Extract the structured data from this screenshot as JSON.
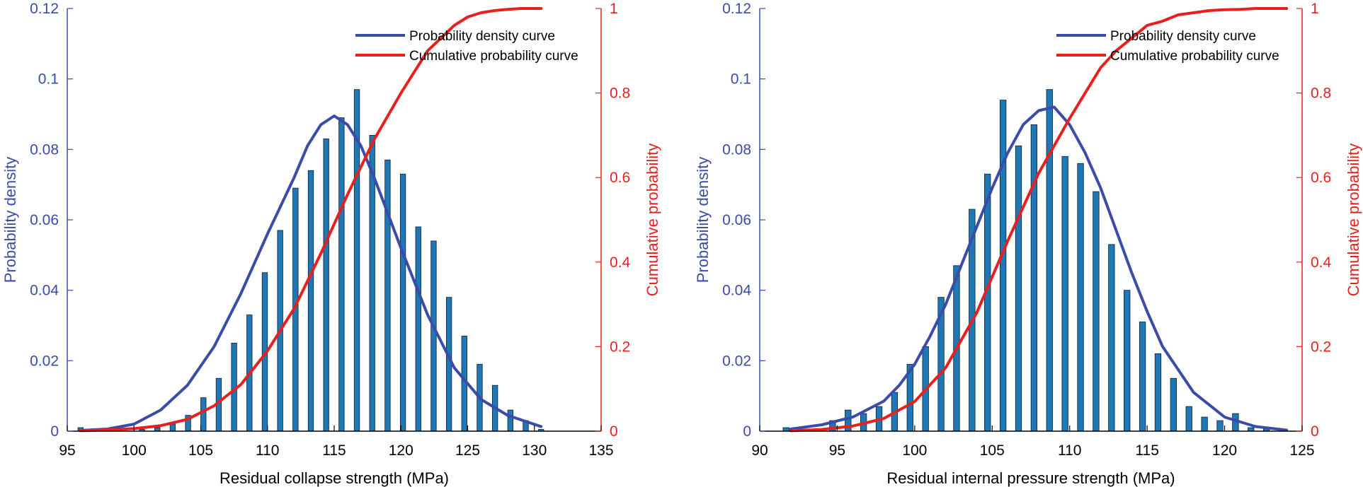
{
  "colors": {
    "left_axis": "#3b4ba8",
    "right_axis": "#e8201d",
    "bar_fill": "#1f77b4",
    "bar_edge": "#0a1f3a",
    "density_line": "#3b4ba8",
    "cumulative_line": "#e8201d",
    "bottom_axis": "#000000"
  },
  "chart_data": [
    {
      "type": "bar",
      "title": "",
      "xlabel": "Residual collapse strength (MPa)",
      "ylabel": "Probability density",
      "y2label": "Cumulative probability",
      "xlim": [
        95,
        135
      ],
      "ylim": [
        0,
        0.12
      ],
      "y2lim": [
        0,
        1
      ],
      "xticks": [
        "95",
        "100",
        "105",
        "110",
        "115",
        "120",
        "125",
        "130",
        "135"
      ],
      "yticks": [
        "0",
        "0.02",
        "0.04",
        "0.06",
        "0.08",
        "0.1",
        "0.12"
      ],
      "y2ticks": [
        "0",
        "0.2",
        "0.4",
        "0.6",
        "0.8",
        "1"
      ],
      "legend_position": "top-right",
      "bars": {
        "x": [
          96,
          97.15,
          98.3,
          99.45,
          100.6,
          101.75,
          102.9,
          104.05,
          105.2,
          106.35,
          107.5,
          108.65,
          109.8,
          110.95,
          112.1,
          113.25,
          114.4,
          115.55,
          116.7,
          117.85,
          119,
          120.15,
          121.3,
          122.45,
          123.6,
          124.75,
          125.9,
          127.05,
          128.2,
          129.35,
          130.5
        ],
        "values": [
          0.001,
          0,
          0,
          0,
          0.0005,
          0.001,
          0.002,
          0.0045,
          0.0095,
          0.015,
          0.025,
          0.033,
          0.045,
          0.057,
          0.069,
          0.074,
          0.083,
          0.089,
          0.097,
          0.084,
          0.077,
          0.073,
          0.058,
          0.054,
          0.038,
          0.027,
          0.019,
          0.013,
          0.006,
          0.003,
          0.0005
        ]
      },
      "series": [
        {
          "name": "Probability density curve",
          "x": [
            96,
            98,
            100,
            102,
            104,
            106,
            108,
            110,
            111,
            112,
            113,
            114,
            115,
            116,
            117,
            118,
            120,
            122,
            124,
            126,
            128,
            130.5
          ],
          "values": [
            0.0002,
            0.0006,
            0.002,
            0.006,
            0.013,
            0.024,
            0.039,
            0.056,
            0.064,
            0.072,
            0.081,
            0.087,
            0.0895,
            0.087,
            0.081,
            0.072,
            0.052,
            0.033,
            0.018,
            0.009,
            0.0045,
            0.0013
          ]
        },
        {
          "name": "Cumulative probability curve",
          "x": [
            96,
            98,
            100,
            102,
            104,
            106,
            108,
            110,
            112,
            114,
            116,
            118,
            120,
            122,
            124,
            125,
            126,
            127,
            128,
            129,
            130.5
          ],
          "values": [
            0.001,
            0.003,
            0.006,
            0.013,
            0.028,
            0.06,
            0.11,
            0.19,
            0.29,
            0.42,
            0.56,
            0.69,
            0.8,
            0.9,
            0.96,
            0.98,
            0.99,
            0.995,
            0.998,
            1,
            1
          ]
        }
      ]
    },
    {
      "type": "bar",
      "title": "",
      "xlabel": "Residual internal pressure strength (MPa)",
      "ylabel": "Probability density",
      "y2label": "Cumulative probability",
      "xlim": [
        90,
        125
      ],
      "ylim": [
        0,
        0.12
      ],
      "y2lim": [
        0,
        1
      ],
      "xticks": [
        "90",
        "95",
        "100",
        "105",
        "110",
        "115",
        "120",
        "125"
      ],
      "yticks": [
        "0",
        "0.02",
        "0.04",
        "0.06",
        "0.08",
        "0.1",
        "0.12"
      ],
      "y2ticks": [
        "0",
        "0.2",
        "0.4",
        "0.6",
        "0.8",
        "1"
      ],
      "legend_position": "top-right",
      "bars": {
        "x": [
          91.7,
          92.7,
          93.7,
          94.7,
          95.7,
          96.7,
          97.7,
          98.7,
          99.7,
          100.7,
          101.7,
          102.7,
          103.7,
          104.7,
          105.7,
          106.7,
          107.7,
          108.7,
          109.7,
          110.7,
          111.7,
          112.7,
          113.7,
          114.7,
          115.7,
          116.7,
          117.7,
          118.7,
          119.7,
          120.7,
          121.7,
          122.7
        ],
        "values": [
          0.001,
          0,
          0,
          0.003,
          0.006,
          0.005,
          0.007,
          0.011,
          0.019,
          0.024,
          0.038,
          0.047,
          0.063,
          0.073,
          0.094,
          0.081,
          0.087,
          0.097,
          0.078,
          0.076,
          0.068,
          0.053,
          0.04,
          0.031,
          0.022,
          0.015,
          0.007,
          0.004,
          0.003,
          0.005,
          0.001,
          0.001
        ]
      },
      "series": [
        {
          "name": "Probability density curve",
          "x": [
            92,
            94,
            96,
            98,
            99,
            100,
            101,
            102,
            103,
            104,
            105,
            106,
            107,
            108,
            109,
            110,
            111,
            112,
            113,
            114,
            115,
            116,
            118,
            120,
            122,
            124
          ],
          "values": [
            0.0006,
            0.0018,
            0.004,
            0.0085,
            0.013,
            0.019,
            0.027,
            0.036,
            0.047,
            0.058,
            0.069,
            0.079,
            0.087,
            0.091,
            0.092,
            0.087,
            0.079,
            0.069,
            0.057,
            0.045,
            0.034,
            0.024,
            0.011,
            0.004,
            0.0013,
            0.0003
          ]
        },
        {
          "name": "Cumulative probability curve",
          "x": [
            92,
            94,
            96,
            98,
            100,
            102,
            104,
            106,
            108,
            110,
            111,
            112,
            113,
            114,
            115,
            116,
            117,
            118,
            119,
            120,
            121,
            122,
            124
          ],
          "values": [
            0.001,
            0.004,
            0.012,
            0.03,
            0.07,
            0.15,
            0.28,
            0.45,
            0.61,
            0.74,
            0.8,
            0.86,
            0.9,
            0.93,
            0.96,
            0.97,
            0.985,
            0.99,
            0.995,
            0.997,
            0.998,
            1,
            1
          ]
        }
      ]
    }
  ]
}
